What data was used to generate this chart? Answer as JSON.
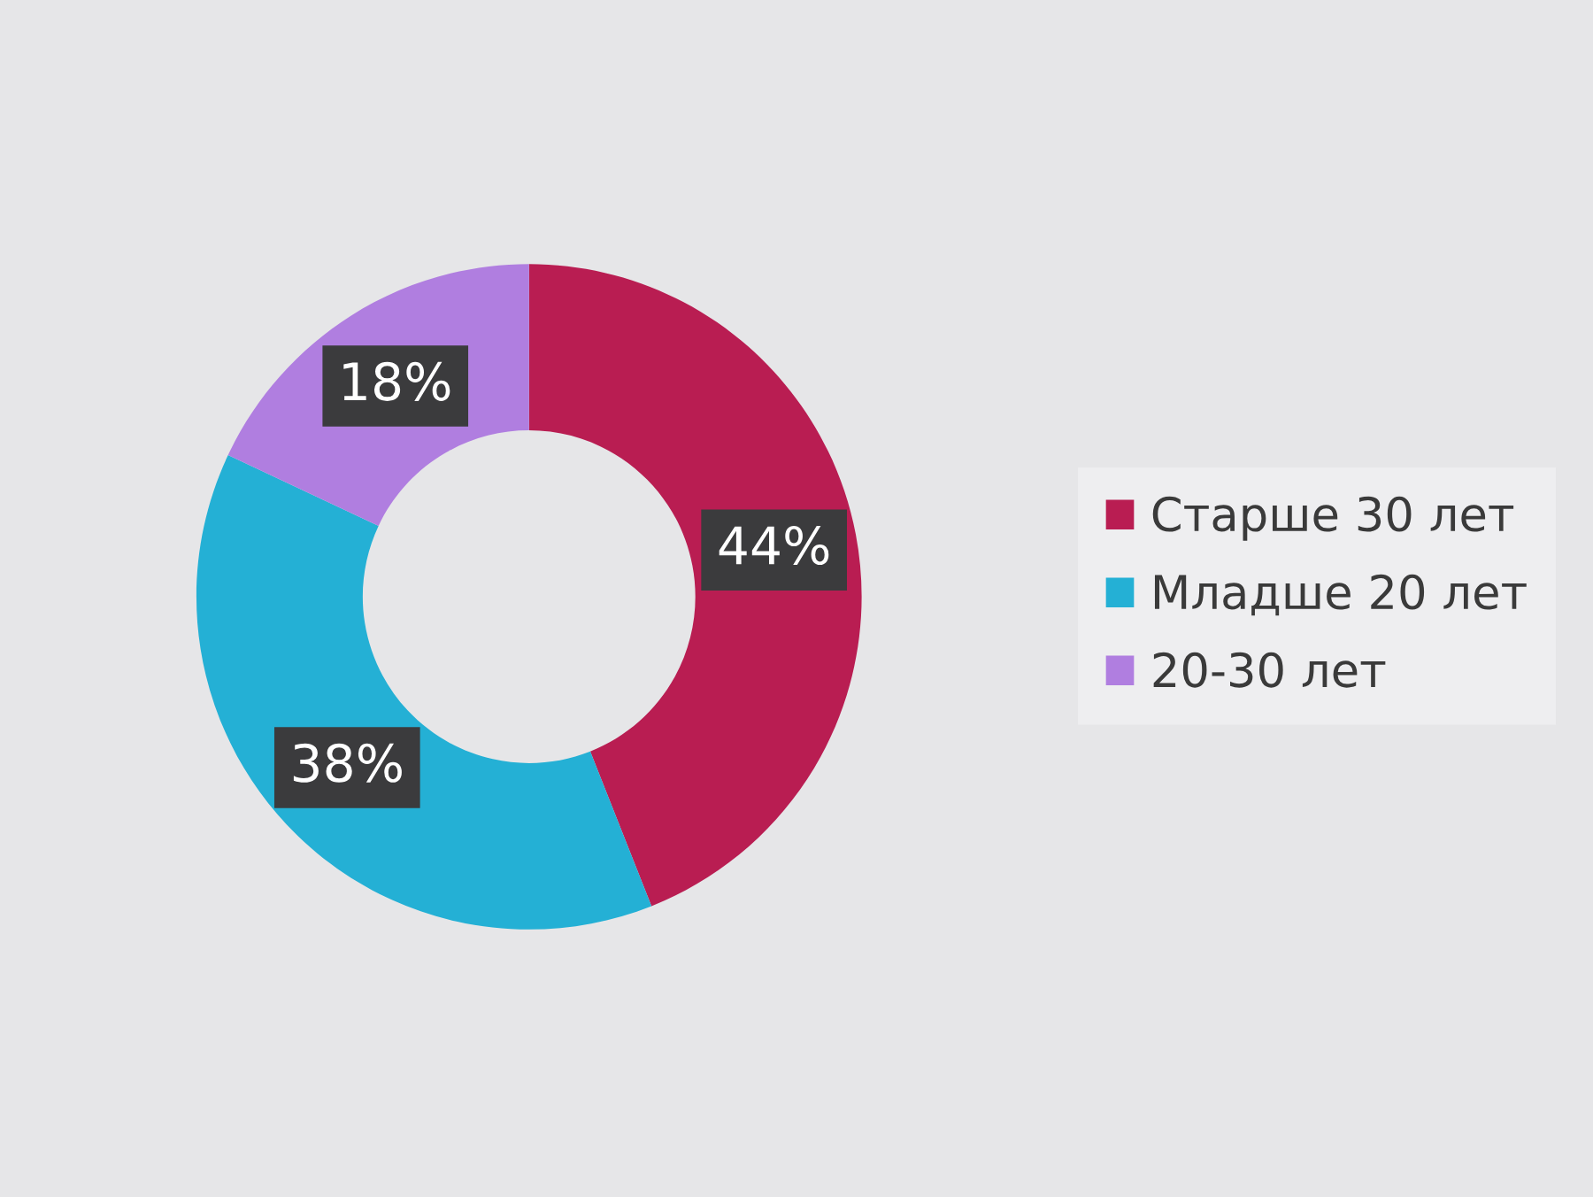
{
  "chart_data": {
    "type": "donut",
    "categories": [
      "Старше 30 лет",
      "Младше 20 лет",
      "20-30 лет"
    ],
    "values": [
      44,
      38,
      18
    ],
    "colors": [
      "#b91d52",
      "#24b0d5",
      "#b07ee0"
    ],
    "value_labels": [
      "44%",
      "38%",
      "18%"
    ],
    "legend": "right"
  }
}
